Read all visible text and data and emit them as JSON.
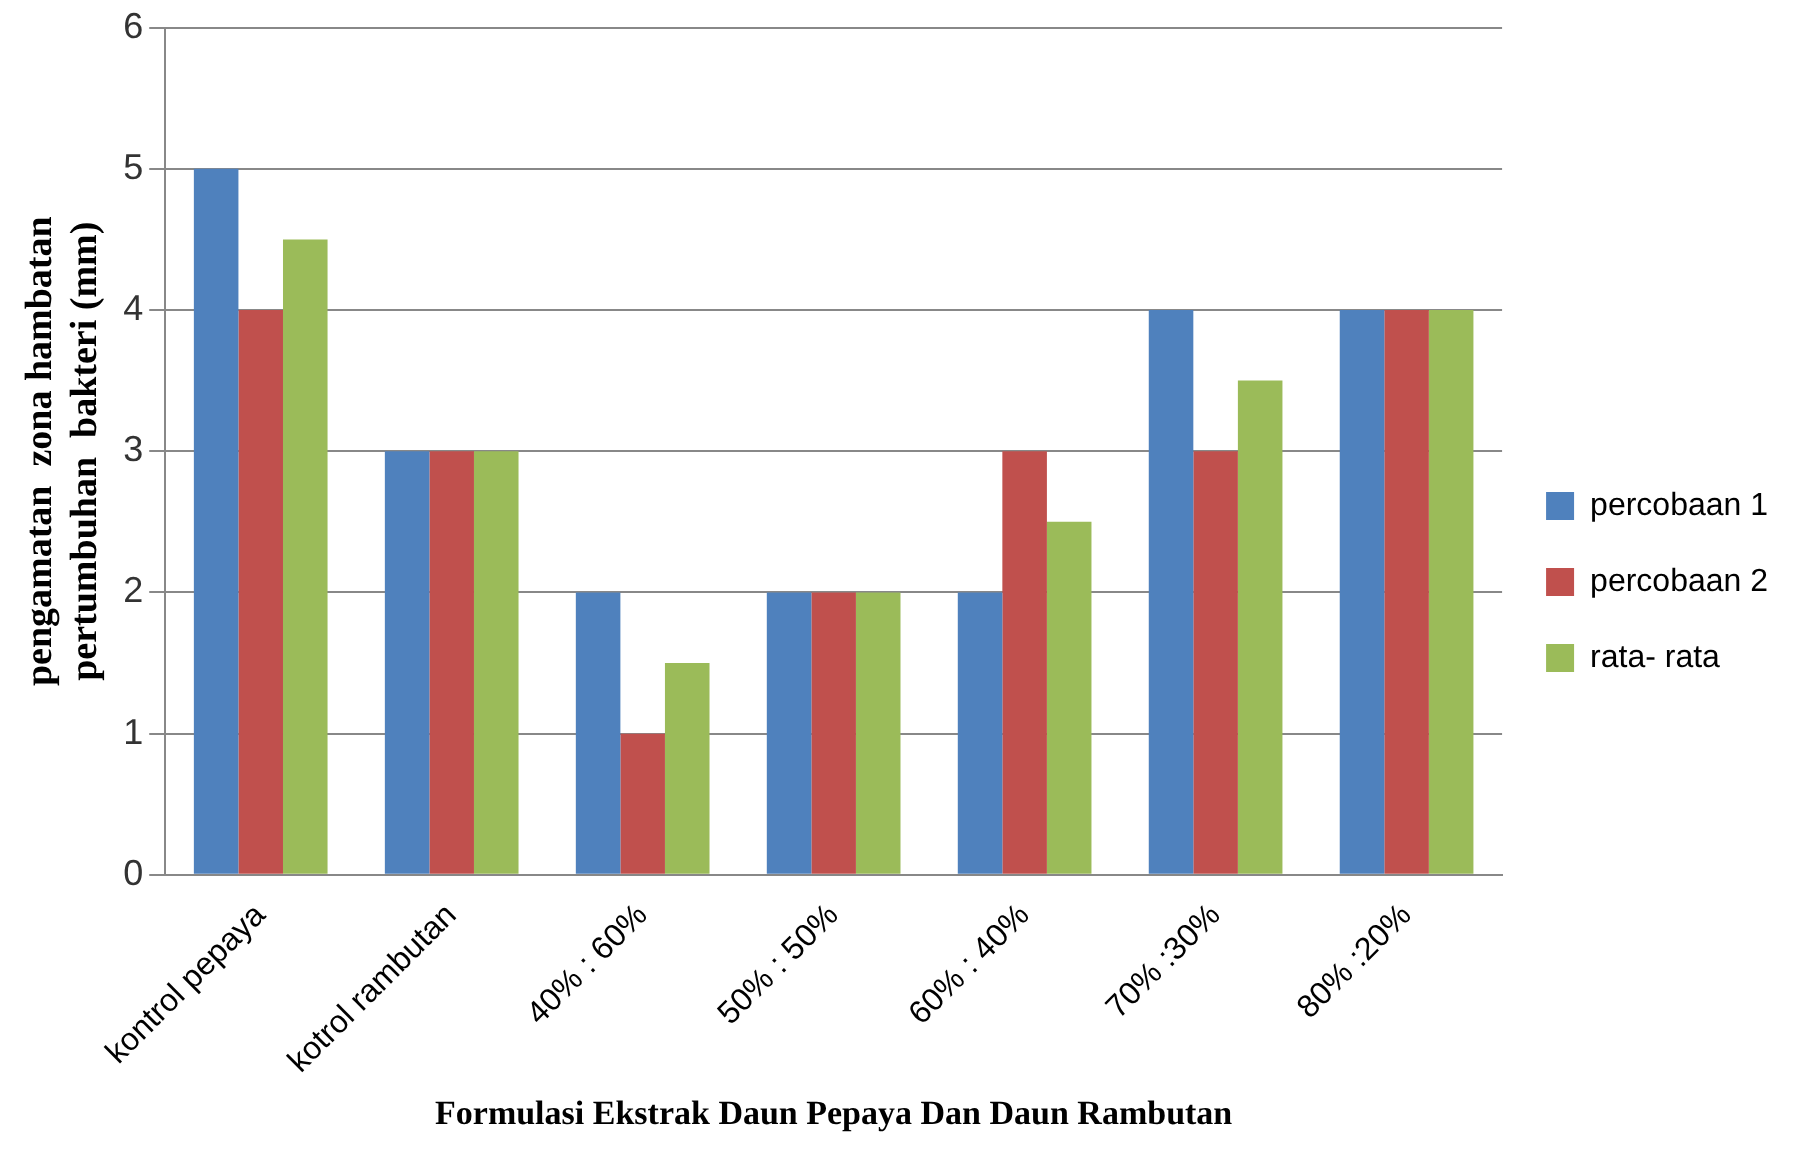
{
  "chart_data": {
    "type": "bar",
    "xlabel": "Formulasi Ekstrak Daun Pepaya Dan Daun Rambutan",
    "ylabel": "pengamatan  zona hambatan\npertumbuhan  bakteri (mm)",
    "categories": [
      "kontrol pepaya",
      "kotrol rambutan",
      "40% : 60%",
      "50% : 50%",
      "60% : 40%",
      "70% :30%",
      "80% :20%"
    ],
    "series": [
      {
        "name": "percobaan 1",
        "color": "#4f81bd",
        "values": [
          5,
          3,
          2,
          2,
          2,
          4,
          4
        ]
      },
      {
        "name": "percobaan 2",
        "color": "#c0504d",
        "values": [
          4,
          3,
          1,
          2,
          3,
          3,
          4
        ]
      },
      {
        "name": "rata- rata",
        "color": "#9bbb59",
        "values": [
          4.5,
          3,
          1.5,
          2,
          2.5,
          3.5,
          4
        ]
      }
    ],
    "ylim": [
      0,
      6
    ],
    "yticks": [
      0,
      1,
      2,
      3,
      4,
      5,
      6
    ],
    "grid": "y",
    "legend": "right"
  }
}
